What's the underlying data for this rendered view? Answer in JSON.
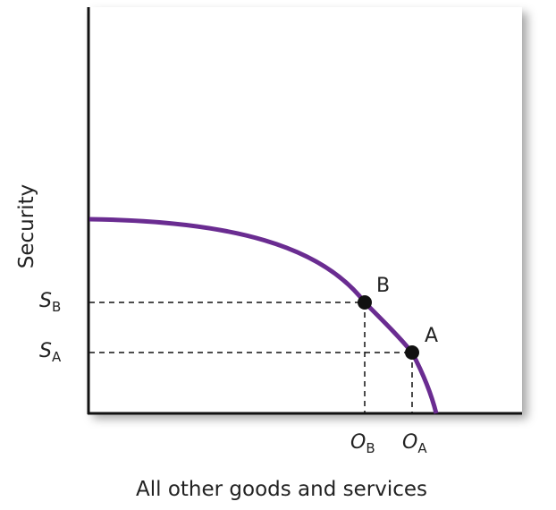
{
  "axes": {
    "y_label": "Security",
    "x_label": "All other goods and services"
  },
  "points": [
    {
      "name": "B",
      "x_tick": {
        "main": "O",
        "sub": "B"
      },
      "y_tick": {
        "main": "S",
        "sub": "B"
      }
    },
    {
      "name": "A",
      "x_tick": {
        "main": "O",
        "sub": "A"
      },
      "y_tick": {
        "main": "S",
        "sub": "A"
      }
    }
  ],
  "colors": {
    "curve": "#6a2c91",
    "axis": "#111111"
  }
}
